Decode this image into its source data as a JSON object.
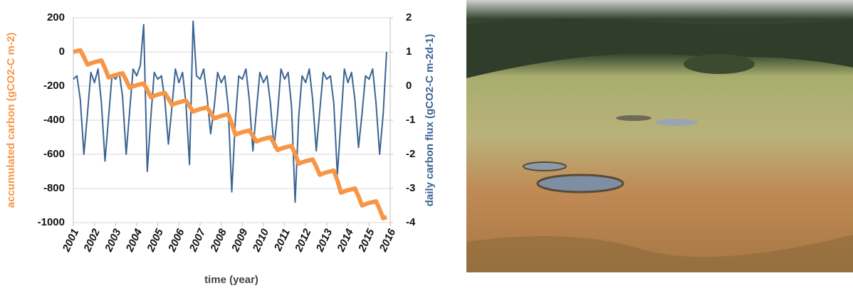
{
  "chart_data": {
    "type": "line",
    "x_label": "time  (year)",
    "y_label": "accumulated carbon  (gCO2-C m-2)",
    "y2_label": "daily carbon flux  (gCO2-C m-2d-1)",
    "xlim": [
      2001,
      2016
    ],
    "xticks": [
      2001,
      2002,
      2003,
      2004,
      2005,
      2006,
      2007,
      2008,
      2009,
      2010,
      2011,
      2012,
      2013,
      2014,
      2015,
      2016
    ],
    "ylim": [
      -1000,
      200
    ],
    "yticks": [
      -1000,
      -800,
      -600,
      -400,
      -200,
      0,
      200
    ],
    "y2lim": [
      -4,
      2
    ],
    "y2ticks": [
      -4,
      -3,
      -2,
      -1,
      0,
      1,
      2
    ],
    "grid": true,
    "x": [
      2001,
      2001.17,
      2001.33,
      2001.5,
      2001.67,
      2001.83,
      2002,
      2002.17,
      2002.33,
      2002.5,
      2002.67,
      2002.83,
      2003,
      2003.17,
      2003.33,
      2003.5,
      2003.67,
      2003.83,
      2004,
      2004.17,
      2004.33,
      2004.5,
      2004.67,
      2004.83,
      2005,
      2005.17,
      2005.33,
      2005.5,
      2005.67,
      2005.83,
      2006,
      2006.17,
      2006.33,
      2006.5,
      2006.67,
      2006.83,
      2007,
      2007.17,
      2007.33,
      2007.5,
      2007.67,
      2007.83,
      2008,
      2008.17,
      2008.33,
      2008.5,
      2008.67,
      2008.83,
      2009,
      2009.17,
      2009.33,
      2009.5,
      2009.67,
      2009.83,
      2010,
      2010.17,
      2010.33,
      2010.5,
      2010.67,
      2010.83,
      2011,
      2011.17,
      2011.33,
      2011.5,
      2011.67,
      2011.83,
      2012,
      2012.17,
      2012.33,
      2012.5,
      2012.67,
      2012.83,
      2013,
      2013.17,
      2013.33,
      2013.5,
      2013.67,
      2013.83,
      2014,
      2014.17,
      2014.33,
      2014.5,
      2014.67,
      2014.83,
      2015,
      2015.17,
      2015.33,
      2015.5,
      2015.67,
      2015.83
    ],
    "series": [
      {
        "color": "#3b6494",
        "axis": "y2",
        "width": 2,
        "values": [
          0.2,
          0.3,
          -0.4,
          -2.0,
          -0.8,
          0.4,
          0.1,
          0.5,
          -0.5,
          -2.2,
          -0.9,
          0.3,
          0.2,
          0.4,
          -0.3,
          -2.0,
          -0.7,
          0.5,
          0.3,
          0.6,
          1.8,
          -2.5,
          -0.9,
          0.4,
          0.2,
          0.3,
          -0.4,
          -1.7,
          -0.6,
          0.5,
          0.1,
          0.4,
          -0.5,
          -2.3,
          1.9,
          0.3,
          0.2,
          0.5,
          -0.3,
          -1.4,
          -0.6,
          0.4,
          0.1,
          0.3,
          -0.6,
          -3.1,
          -1.0,
          0.3,
          0.2,
          0.5,
          -0.4,
          -1.9,
          -0.7,
          0.4,
          0.1,
          0.3,
          -0.5,
          -1.8,
          -0.8,
          0.5,
          0.2,
          0.4,
          -0.6,
          -3.4,
          -0.9,
          0.3,
          0.1,
          0.5,
          -0.4,
          -1.9,
          -0.7,
          0.4,
          0.2,
          0.3,
          -0.5,
          -2.6,
          -1.0,
          0.5,
          0.1,
          0.4,
          -0.4,
          -1.8,
          -0.8,
          0.3,
          0.2,
          0.5,
          -0.5,
          -2.0,
          -0.8,
          1.0
        ]
      },
      {
        "color": "#f79646",
        "axis": "y",
        "width": 6,
        "values": [
          0,
          5,
          10,
          -30,
          -75,
          -67,
          -60,
          -55,
          -50,
          -96,
          -150,
          -142,
          -135,
          -130,
          -125,
          -165,
          -210,
          -202,
          -195,
          -190,
          -185,
          -223,
          -265,
          -257,
          -250,
          -245,
          -240,
          -274,
          -310,
          -302,
          -295,
          -290,
          -285,
          -317,
          -350,
          -342,
          -335,
          -330,
          -325,
          -357,
          -390,
          -382,
          -375,
          -370,
          -365,
          -419,
          -485,
          -477,
          -470,
          -465,
          -460,
          -492,
          -525,
          -517,
          -510,
          -505,
          -500,
          -536,
          -575,
          -567,
          -560,
          -555,
          -550,
          -598,
          -655,
          -647,
          -640,
          -635,
          -630,
          -672,
          -720,
          -712,
          -705,
          -700,
          -695,
          -753,
          -825,
          -817,
          -810,
          -805,
          -800,
          -846,
          -900,
          -892,
          -885,
          -880,
          -875,
          -921,
          -975,
          -967
        ]
      }
    ]
  }
}
